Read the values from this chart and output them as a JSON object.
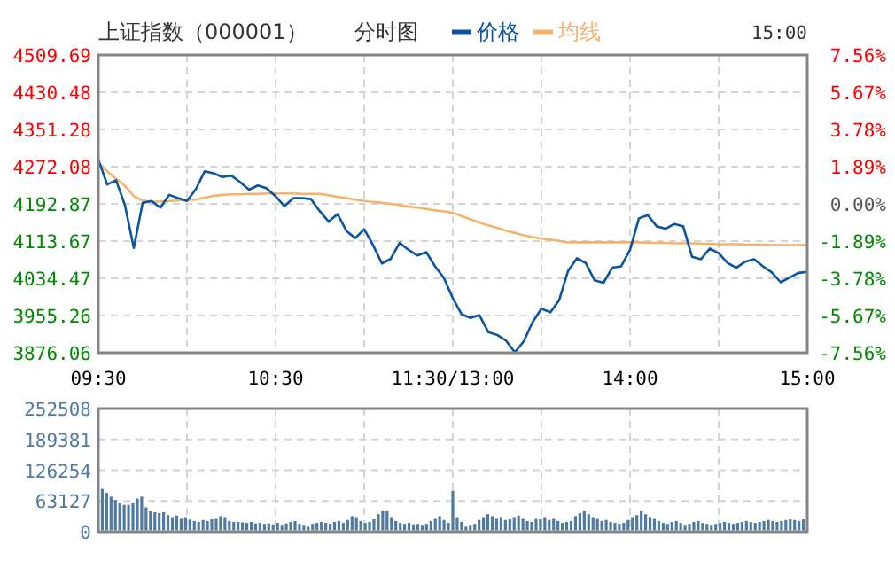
{
  "chart_data": [
    {
      "type": "line",
      "title": "上证指数（000001）",
      "subtitle": "分时图",
      "annotations": [
        "15:00"
      ],
      "legend": "top",
      "grid": true,
      "categories": [
        "09:30",
        null,
        null,
        null,
        null,
        null,
        null,
        null,
        null,
        null,
        null,
        null,
        null,
        null,
        null,
        null,
        null,
        null,
        null,
        null,
        "10:30",
        null,
        null,
        null,
        null,
        null,
        null,
        null,
        null,
        null,
        null,
        null,
        null,
        null,
        null,
        null,
        null,
        null,
        null,
        null,
        "11:30/13:00",
        null,
        null,
        null,
        null,
        null,
        null,
        null,
        null,
        null,
        null,
        null,
        null,
        null,
        null,
        null,
        null,
        null,
        null,
        null,
        "14:00",
        null,
        null,
        null,
        null,
        null,
        null,
        null,
        null,
        null,
        null,
        null,
        null,
        null,
        null,
        null,
        null,
        null,
        null,
        null,
        "15:00"
      ],
      "ylim": [
        3876.06,
        4509.69
      ],
      "yticks": [
        3876.06,
        3955.26,
        4034.47,
        4113.67,
        4192.87,
        4272.08,
        4351.28,
        4430.48,
        4509.69
      ],
      "y2lim": [
        -7.56,
        7.56
      ],
      "y2ticks": [
        {
          "value": -7.56,
          "label": "-7.56%"
        },
        {
          "value": -5.67,
          "label": "-5.67%"
        },
        {
          "value": -3.78,
          "label": "-3.78%"
        },
        {
          "value": -1.89,
          "label": "-1.89%"
        },
        {
          "value": 0,
          "label": "0.00%"
        },
        {
          "value": 1.89,
          "label": "1.89%"
        },
        {
          "value": 3.78,
          "label": "3.78%"
        },
        {
          "value": 5.67,
          "label": "5.67%"
        },
        {
          "value": 7.56,
          "label": "7.56%"
        }
      ],
      "series": [
        {
          "name": "价格",
          "color": "#0a55a3",
          "values": [
            4287,
            4234,
            4243,
            4190,
            4099,
            4195,
            4199,
            4185,
            4212,
            4205,
            4199,
            4224,
            4262,
            4258,
            4250,
            4253,
            4239,
            4223,
            4232,
            4226,
            4209,
            4188,
            4205,
            4205,
            4203,
            4177,
            4155,
            4171,
            4135,
            4120,
            4139,
            4105,
            4066,
            4076,
            4110,
            4095,
            4083,
            4090,
            4060,
            4035,
            3992,
            3958,
            3950,
            3956,
            3920,
            3914,
            3902,
            3877,
            3900,
            3941,
            3970,
            3962,
            3988,
            4050,
            4077,
            4067,
            4030,
            4025,
            4057,
            4060,
            4095,
            4162,
            4169,
            4145,
            4140,
            4150,
            4145,
            4080,
            4075,
            4098,
            4088,
            4067,
            4057,
            4070,
            4075,
            4060,
            4047,
            4026,
            4036,
            4046,
            4048
          ]
        },
        {
          "name": "均线",
          "color": "#f5b26b",
          "values": [
            4281,
            4262,
            4246,
            4231,
            4209,
            4200,
            4197,
            4198,
            4199,
            4200,
            4201,
            4202,
            4206,
            4210,
            4212,
            4213,
            4213,
            4214,
            4214,
            4215,
            4215,
            4215,
            4215,
            4214,
            4214,
            4214,
            4211,
            4208,
            4205,
            4202,
            4199,
            4197,
            4195,
            4193,
            4190,
            4187,
            4185,
            4182,
            4179,
            4177,
            4174,
            4167,
            4160,
            4153,
            4147,
            4142,
            4136,
            4131,
            4126,
            4122,
            4119,
            4117,
            4114,
            4111,
            4111,
            4111,
            4111,
            4111,
            4111,
            4111,
            4111,
            4111,
            4110,
            4110,
            4110,
            4109,
            4109,
            4109,
            4108,
            4108,
            4107,
            4107,
            4107,
            4106,
            4106,
            4106,
            4105,
            4105,
            4105,
            4105,
            4105
          ]
        }
      ]
    },
    {
      "type": "bar",
      "grid": true,
      "tick_labels": "y",
      "color": "#4f7aa3",
      "categories": [
        null,
        null,
        null,
        null,
        null,
        null,
        null,
        null,
        null,
        null,
        null,
        null,
        null,
        null,
        null,
        null,
        null,
        null,
        null,
        null,
        null,
        null,
        null,
        null,
        null,
        null,
        null,
        null,
        null,
        null,
        null,
        null,
        null,
        null,
        null,
        null,
        null,
        null,
        null,
        null,
        null,
        null,
        null,
        null,
        null,
        null,
        null,
        null,
        null,
        null,
        null,
        null,
        null,
        null,
        null,
        null,
        null,
        null,
        null,
        null,
        null,
        null,
        null,
        null,
        null,
        null,
        null,
        null,
        null,
        null,
        null,
        null,
        null,
        null,
        null,
        null,
        null,
        null,
        null,
        null,
        null,
        null,
        null,
        null,
        null,
        null,
        null,
        null,
        null,
        null,
        null,
        null,
        null,
        null,
        null,
        null,
        null,
        null,
        null,
        null,
        null,
        null,
        null,
        null,
        null,
        null,
        null,
        null,
        null,
        null,
        null,
        null,
        null,
        null,
        null,
        null,
        null,
        null,
        null,
        null,
        null,
        null,
        null,
        null,
        null,
        null,
        null,
        null,
        null,
        null,
        null,
        null,
        null,
        null,
        null,
        null,
        null,
        null,
        null,
        null,
        null,
        null,
        null,
        null,
        null,
        null,
        null,
        null,
        null,
        null,
        null,
        null,
        null,
        null,
        null,
        null,
        null,
        null,
        null,
        null,
        null
      ],
      "ylim": [
        0,
        252508
      ],
      "yticks": [
        0,
        63127,
        126254,
        189381,
        252508
      ],
      "values": [
        88000,
        80000,
        72000,
        65000,
        58000,
        55000,
        55000,
        60000,
        68000,
        72000,
        50000,
        42000,
        40000,
        38000,
        40000,
        34000,
        30000,
        33000,
        28000,
        30000,
        25000,
        22000,
        20000,
        24000,
        22000,
        26000,
        28000,
        32000,
        30000,
        22000,
        20000,
        20000,
        19000,
        18000,
        20000,
        17000,
        18000,
        16000,
        17000,
        15000,
        18000,
        14000,
        17000,
        20000,
        22000,
        16000,
        14000,
        12000,
        16000,
        18000,
        20000,
        18000,
        16000,
        20000,
        22000,
        18000,
        24000,
        32000,
        30000,
        22000,
        18000,
        20000,
        26000,
        36000,
        44000,
        44000,
        30000,
        22000,
        18000,
        16000,
        18000,
        15000,
        16000,
        14000,
        16000,
        22000,
        28000,
        32000,
        24000,
        18000,
        84000,
        30000,
        20000,
        12000,
        14000,
        16000,
        24000,
        30000,
        36000,
        32000,
        28000,
        30000,
        24000,
        26000,
        30000,
        33000,
        28000,
        22000,
        20000,
        28000,
        26000,
        30000,
        24000,
        28000,
        22000,
        18000,
        20000,
        22000,
        32000,
        38000,
        44000,
        36000,
        30000,
        28000,
        22000,
        24000,
        20000,
        18000,
        16000,
        18000,
        24000,
        30000,
        34000,
        44000,
        36000,
        30000,
        28000,
        22000,
        18000,
        16000,
        20000,
        22000,
        18000,
        14000,
        16000,
        20000,
        22000,
        18000,
        16000,
        14000,
        16000,
        18000,
        20000,
        18000,
        16000,
        18000,
        20000,
        22000,
        20000,
        18000,
        20000,
        22000,
        24000,
        22000,
        20000,
        22000,
        24000,
        26000,
        24000,
        22000,
        26000
      ]
    }
  ]
}
